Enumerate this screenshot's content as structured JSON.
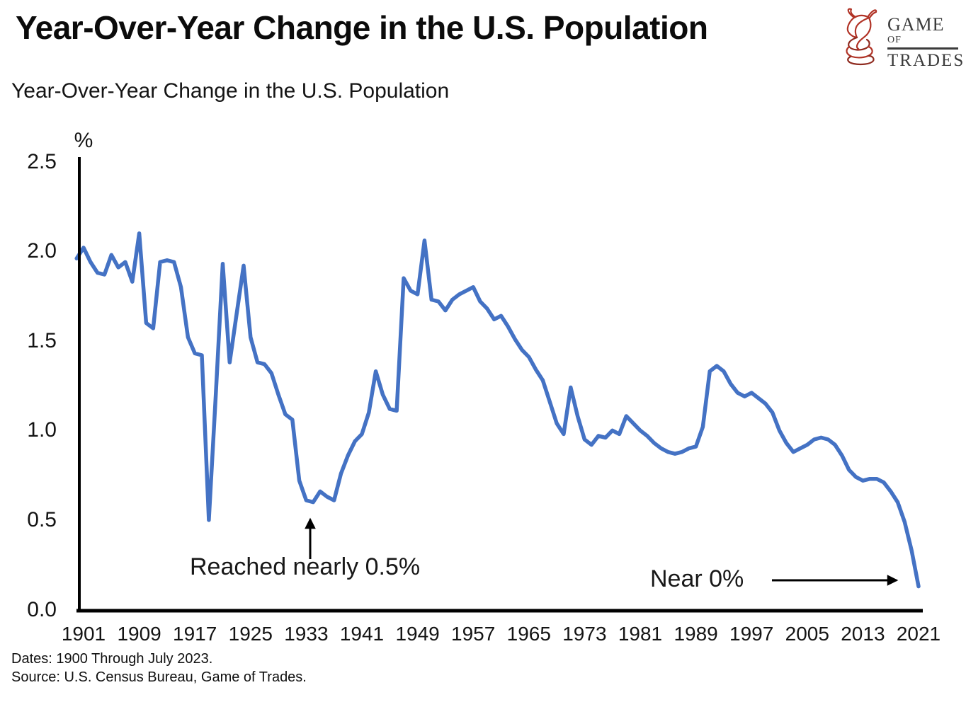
{
  "header": {
    "title": "Year-Over-Year Change in the U.S. Population",
    "logo": {
      "word1": "GAME",
      "word2": "OF",
      "word3": "TRADES"
    }
  },
  "subtitle": "Year-Over-Year Change in the U.S. Population",
  "chart_data": {
    "type": "line",
    "title": "Year-Over-Year Change in the U.S. Population",
    "series_name": "YoY % change in U.S. population",
    "unit_label": "%",
    "line_color": "#4472C4",
    "grid": false,
    "legend": "none",
    "x_start_year": 1900,
    "x_end_year": 2021,
    "values": [
      1.96,
      2.02,
      1.94,
      1.88,
      1.87,
      1.98,
      1.91,
      1.94,
      1.83,
      2.1,
      1.6,
      1.57,
      1.94,
      1.95,
      1.94,
      1.8,
      1.52,
      1.43,
      1.42,
      0.5,
      1.2,
      1.93,
      1.38,
      1.65,
      1.92,
      1.52,
      1.38,
      1.37,
      1.32,
      1.2,
      1.09,
      1.06,
      0.72,
      0.61,
      0.6,
      0.66,
      0.63,
      0.61,
      0.76,
      0.86,
      0.94,
      0.98,
      1.1,
      1.33,
      1.2,
      1.12,
      1.11,
      1.85,
      1.78,
      1.76,
      2.06,
      1.73,
      1.72,
      1.67,
      1.73,
      1.76,
      1.78,
      1.8,
      1.72,
      1.68,
      1.62,
      1.64,
      1.58,
      1.51,
      1.45,
      1.41,
      1.34,
      1.28,
      1.16,
      1.04,
      0.98,
      1.24,
      1.08,
      0.95,
      0.92,
      0.97,
      0.96,
      1.0,
      0.98,
      1.08,
      1.04,
      1.0,
      0.97,
      0.93,
      0.9,
      0.88,
      0.87,
      0.88,
      0.9,
      0.91,
      1.02,
      1.33,
      1.36,
      1.33,
      1.26,
      1.21,
      1.19,
      1.21,
      1.18,
      1.15,
      1.1,
      1.0,
      0.93,
      0.88,
      0.9,
      0.92,
      0.95,
      0.96,
      0.95,
      0.92,
      0.86,
      0.78,
      0.74,
      0.72,
      0.73,
      0.73,
      0.71,
      0.66,
      0.6,
      0.49,
      0.33,
      0.13
    ],
    "x_ticks": [
      1901,
      1909,
      1917,
      1925,
      1933,
      1941,
      1949,
      1957,
      1965,
      1973,
      1981,
      1989,
      1997,
      2005,
      2013,
      2021
    ],
    "y_ticks": [
      "2.5",
      "2.0",
      "1.5",
      "1.0",
      "0.5",
      "0.0"
    ],
    "ylim": [
      0.0,
      2.5
    ],
    "xlim": [
      1900,
      2023
    ],
    "annotations": [
      {
        "text": "Reached nearly 0.5%",
        "points_to": "1930s trough (~0.6%)"
      },
      {
        "text": "Near 0%",
        "points_to": "final data point (~0.13%)"
      }
    ]
  },
  "footer": {
    "dates": "Dates: 1900 Through July 2023.",
    "source": "Source: U.S. Census Bureau, Game of Trades."
  }
}
